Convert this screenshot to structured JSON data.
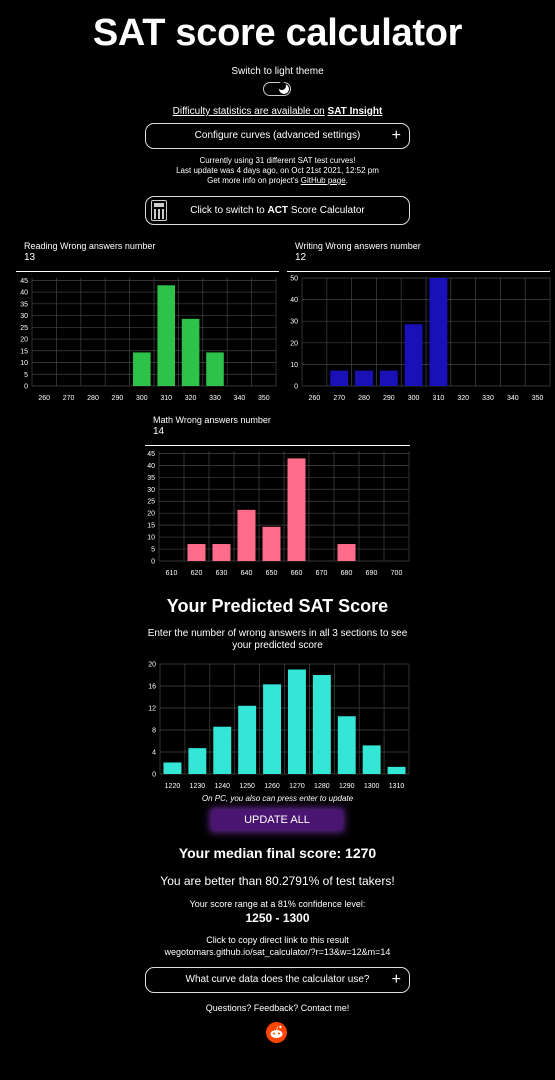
{
  "page": {
    "title": "SAT score calculator",
    "theme_toggle_label": "Switch to light theme",
    "insight_prefix": "Difficulty statistics are available on",
    "insight_link": "SAT Insight",
    "configure_curves_label": "Configure curves (advanced settings)",
    "info_line1": "Currently using 31 different SAT test curves!",
    "info_line2": "Last update was 4 days ago, on Oct 21st 2021, 12:52 pm",
    "info_line3_prefix": "Get more info on project's",
    "info_line3_link": "GitHub page",
    "info_line3_suffix": ".",
    "act_prefix": "Click to switch to",
    "act_bold": "ACT",
    "act_suffix": "Score Calculator"
  },
  "sections": {
    "reading": {
      "label": "Reading Wrong answers number",
      "value": "13"
    },
    "writing": {
      "label": "Writing Wrong answers number",
      "value": "12"
    },
    "math": {
      "label": "Math Wrong answers number",
      "value": "14"
    }
  },
  "results": {
    "predicted_title": "Your Predicted SAT Score",
    "predicted_sub1": "Enter the number of wrong answers in all 3 sections to see",
    "predicted_sub2": "your predicted score",
    "enter_note": "On PC, you also can press enter to update",
    "update_label": "UPDATE ALL",
    "median": "Your median final score: 1270",
    "better": "You are better than 80.2791% of test takers!",
    "range_label": "Your score range at a 81% confidence level:",
    "range_value": "1250 - 1300",
    "copy_label": "Click to copy direct link to this result",
    "copy_url": "wegotomars.github.io/sat_calculator/?r=13&w=12&m=14",
    "curve_data_label": "What curve data does the calculator use?",
    "contact": "Questions? Feedback? Contact me!"
  },
  "colors": {
    "reading": "#2ec24a",
    "writing": "#1a10b8",
    "math": "#ff6b8a",
    "total": "#33e6d6"
  },
  "chart_data": [
    {
      "type": "bar",
      "id": "reading",
      "categories": [
        "260",
        "270",
        "280",
        "290",
        "300",
        "310",
        "320",
        "330",
        "340",
        "350"
      ],
      "values": [
        0,
        0,
        0,
        0,
        14.3,
        42.9,
        28.6,
        14.3,
        0,
        0
      ],
      "yticks": [
        0,
        5,
        10,
        15,
        20,
        25,
        30,
        35,
        40,
        45
      ],
      "ylim": [
        0,
        46
      ]
    },
    {
      "type": "bar",
      "id": "writing",
      "categories": [
        "260",
        "270",
        "280",
        "290",
        "300",
        "310",
        "320",
        "330",
        "340",
        "350"
      ],
      "values": [
        0,
        7.1,
        7.1,
        7.1,
        28.6,
        50,
        0,
        0,
        0,
        0
      ],
      "yticks": [
        0,
        10,
        20,
        30,
        40,
        50
      ],
      "ylim": [
        0,
        50
      ]
    },
    {
      "type": "bar",
      "id": "math",
      "categories": [
        "610",
        "620",
        "630",
        "640",
        "650",
        "660",
        "670",
        "680",
        "690",
        "700"
      ],
      "values": [
        0,
        7.1,
        7.1,
        21.4,
        14.3,
        42.9,
        0,
        7.1,
        0,
        0
      ],
      "yticks": [
        0,
        5,
        10,
        15,
        20,
        25,
        30,
        35,
        40,
        45
      ],
      "ylim": [
        0,
        46
      ]
    },
    {
      "type": "bar",
      "id": "total",
      "categories": [
        "1220",
        "1230",
        "1240",
        "1250",
        "1260",
        "1270",
        "1280",
        "1290",
        "1300",
        "1310"
      ],
      "values": [
        2.1,
        4.7,
        8.6,
        12.4,
        16.3,
        19,
        18,
        10.5,
        5.2,
        1.3
      ],
      "yticks": [
        0,
        4,
        8,
        12,
        16,
        20
      ],
      "ylim": [
        0,
        20
      ]
    }
  ]
}
